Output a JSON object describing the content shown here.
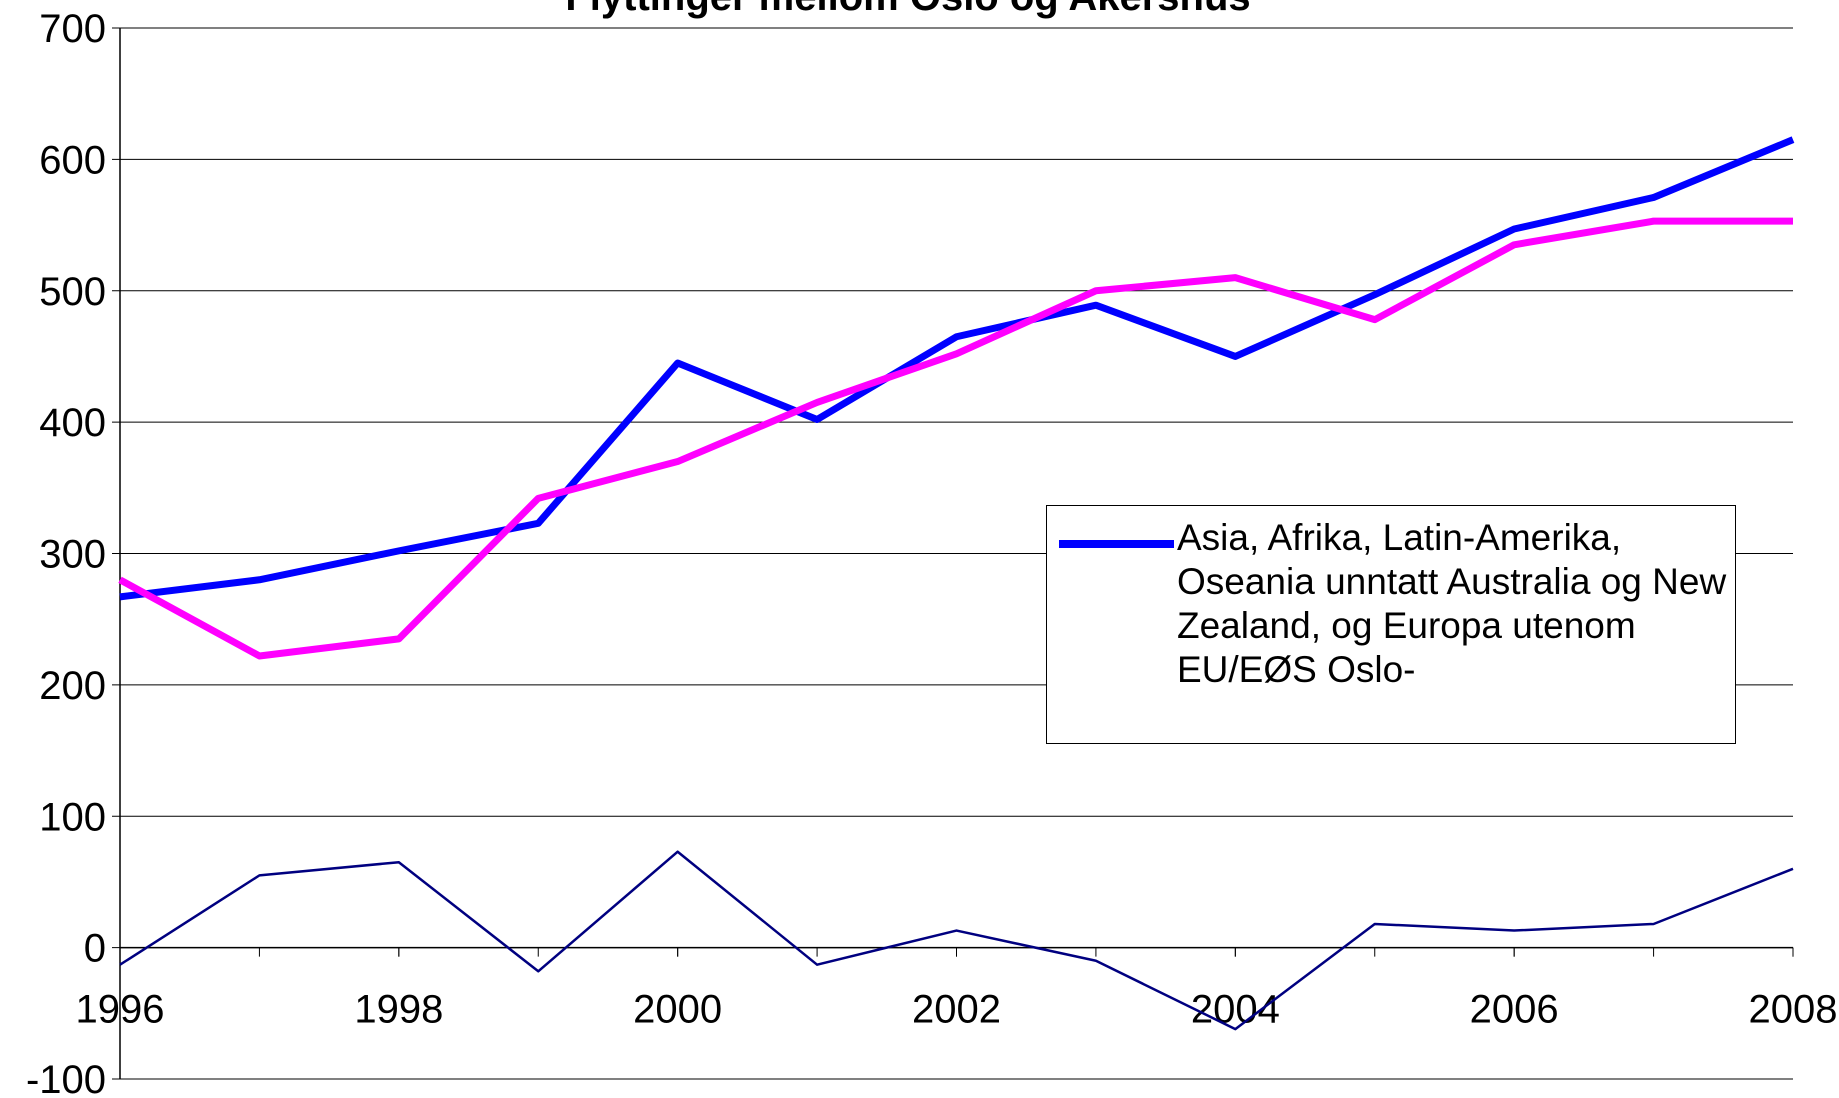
{
  "chart_data": {
    "type": "line",
    "title": "Flyttinger mellom Oslo og Akershus",
    "x": [
      1996,
      1997,
      1998,
      1999,
      2000,
      2001,
      2002,
      2003,
      2004,
      2005,
      2006,
      2007,
      2008
    ],
    "series": [
      {
        "name": "Asia, Afrika, Latin-Amerika, Oseania unntatt Australia og New Zealand, og Europa utenom EU/EØS Oslo-",
        "color": "#0000ff",
        "values": [
          267,
          280,
          302,
          323,
          445,
          402,
          465,
          489,
          450,
          497,
          547,
          571,
          615
        ]
      },
      {
        "color": "#ff00ff",
        "values": [
          280,
          222,
          235,
          342,
          370,
          415,
          452,
          500,
          510,
          478,
          535,
          553,
          553
        ]
      },
      {
        "color": "#000080",
        "values": [
          -13,
          55,
          65,
          -18,
          73,
          -13,
          13,
          -10,
          -62,
          18,
          13,
          18,
          60
        ]
      }
    ],
    "xlim": [
      1996,
      2008
    ],
    "xticks": [
      1996,
      1998,
      2000,
      2002,
      2004,
      2006,
      2008
    ],
    "ylim": [
      -100,
      700
    ],
    "yticks": [
      -100,
      0,
      100,
      200,
      300,
      400,
      500,
      600,
      700
    ],
    "grid": true
  }
}
